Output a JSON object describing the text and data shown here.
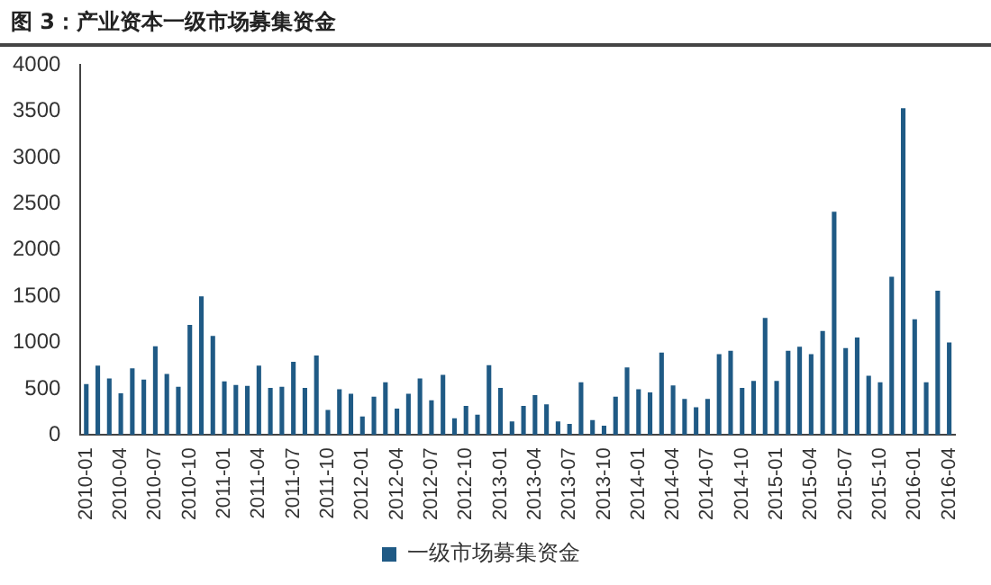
{
  "chart_data": {
    "type": "bar",
    "title": "图 3：产业资本一级市场募集资金",
    "categories": [
      "2010-01",
      null,
      null,
      "2010-04",
      null,
      null,
      "2010-07",
      null,
      null,
      "2010-10",
      null,
      null,
      "2011-01",
      null,
      null,
      "2011-04",
      null,
      null,
      "2011-07",
      null,
      null,
      "2011-10",
      null,
      null,
      "2012-01",
      null,
      null,
      "2012-04",
      null,
      null,
      "2012-07",
      null,
      null,
      "2012-10",
      null,
      null,
      "2013-01",
      null,
      null,
      "2013-04",
      null,
      null,
      "2013-07",
      null,
      null,
      "2013-10",
      null,
      null,
      "2014-01",
      null,
      null,
      "2014-04",
      null,
      null,
      "2014-07",
      null,
      null,
      "2014-10",
      null,
      null,
      "2015-01",
      null,
      null,
      "2015-04",
      null,
      null,
      "2015-07",
      null,
      null,
      "2015-10",
      null,
      null,
      "2016-01",
      null,
      null,
      "2016-04"
    ],
    "series": [
      {
        "name": "一级市场募集资金",
        "color": "#1f5a85",
        "values": [
          550,
          750,
          610,
          450,
          720,
          600,
          960,
          660,
          520,
          1190,
          1500,
          1070,
          580,
          540,
          530,
          750,
          510,
          520,
          790,
          510,
          860,
          270,
          495,
          445,
          200,
          415,
          570,
          285,
          445,
          610,
          375,
          650,
          180,
          315,
          220,
          755,
          510,
          145,
          315,
          430,
          330,
          145,
          120,
          570,
          160,
          100,
          415,
          730,
          495,
          460,
          890,
          535,
          390,
          300,
          390,
          875,
          910,
          510,
          585,
          1265,
          585,
          910,
          955,
          875,
          1125,
          2415,
          940,
          1055,
          640,
          570,
          1710,
          3535,
          1250,
          570,
          1560,
          1000
        ]
      }
    ],
    "ylim": [
      0,
      4000
    ],
    "yticks": [
      0,
      500,
      1000,
      1500,
      2000,
      2500,
      3000,
      3500,
      4000
    ],
    "grid": false,
    "legend": "bottom"
  }
}
